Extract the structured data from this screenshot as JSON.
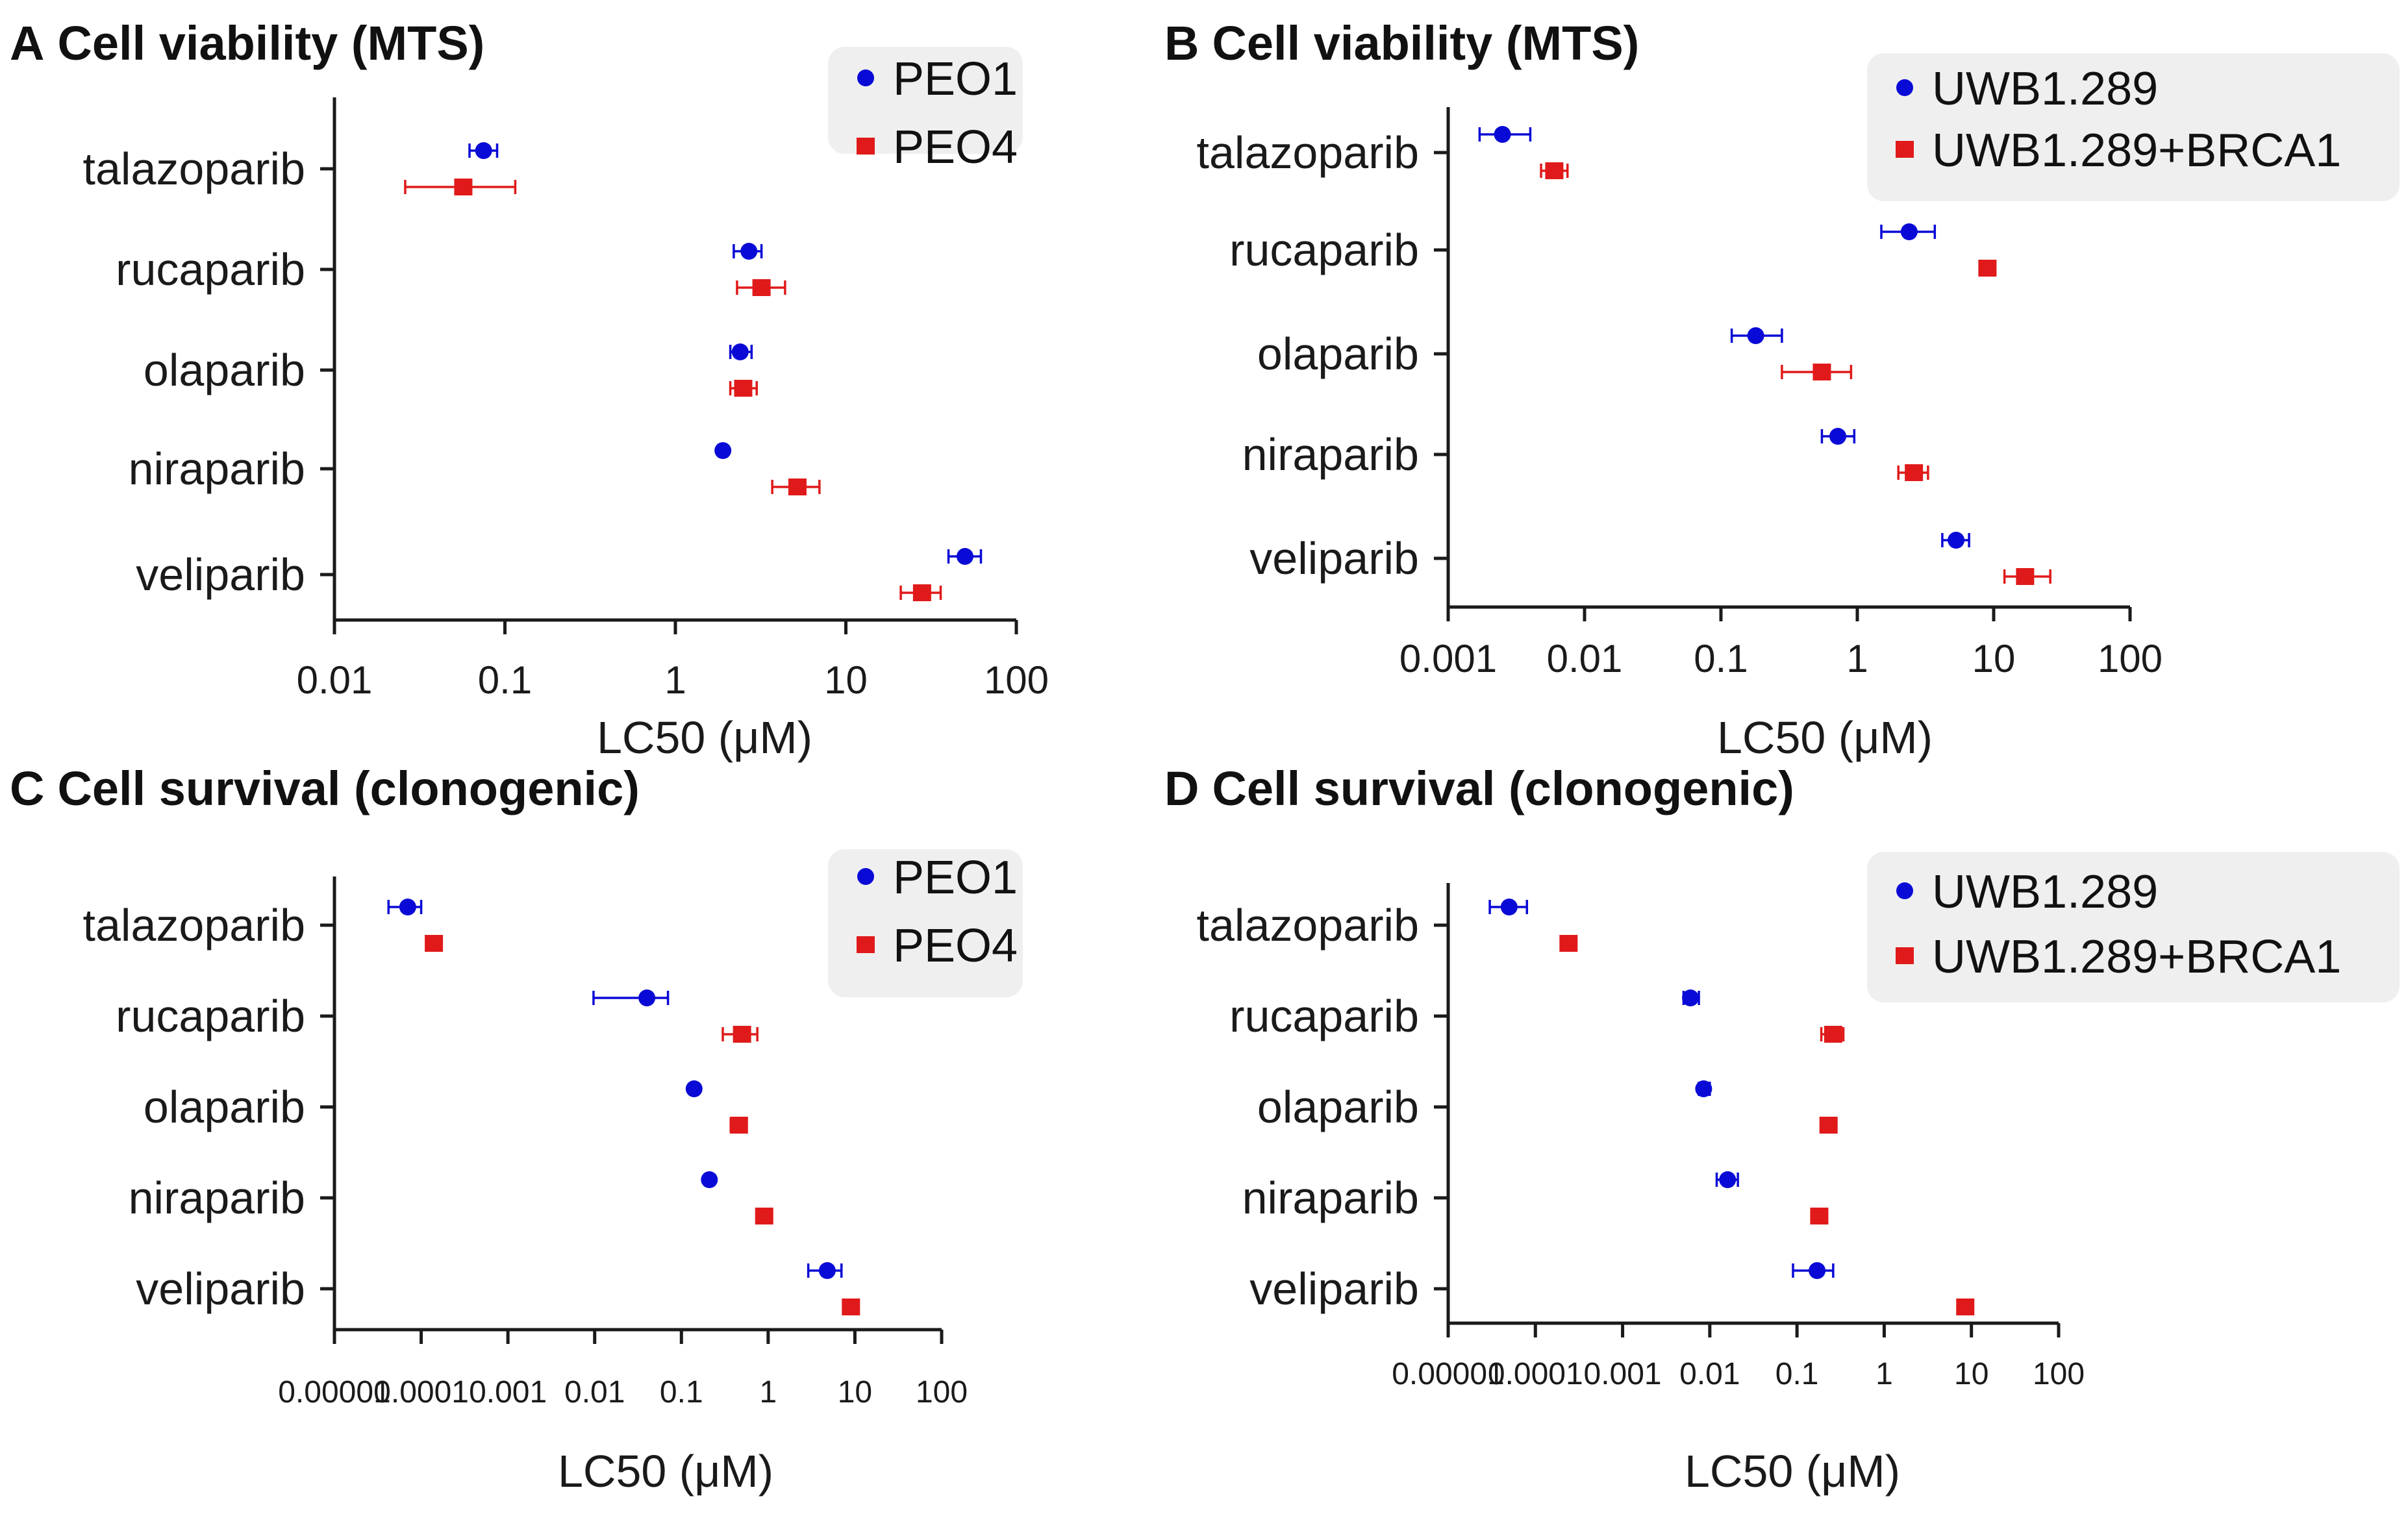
{
  "colors": {
    "peo1": "#0a0ad6",
    "peo4": "#e01a1a",
    "legend_bg": "#efefef",
    "text": "#1a1a1a"
  },
  "chart_data": [
    {
      "id": "A",
      "letter": "A",
      "title": "Cell viability (MTS)",
      "type": "scatter",
      "x_scale": "log",
      "xlim": [
        0.01,
        100
      ],
      "xticks": [
        "0.01",
        "0.1",
        "1",
        "10",
        "100"
      ],
      "xlabel": "LC50 (μM)",
      "categories": [
        "talazoparib",
        "rucaparib",
        "olaparib",
        "niraparib",
        "veliparib"
      ],
      "legend_position": "top-right",
      "series": [
        {
          "name": "PEO1",
          "marker": "circle",
          "color": "#0a0ad6",
          "values": [
            0.075,
            2.7,
            2.4,
            1.9,
            50
          ],
          "err_low": [
            0.062,
            2.2,
            2.1,
            1.8,
            40
          ],
          "err_high": [
            0.09,
            3.2,
            2.8,
            2.0,
            62
          ]
        },
        {
          "name": "PEO4",
          "marker": "square",
          "color": "#e01a1a",
          "values": [
            0.057,
            3.2,
            2.5,
            5.2,
            28
          ],
          "err_low": [
            0.026,
            2.3,
            2.1,
            3.7,
            21
          ],
          "err_high": [
            0.115,
            4.4,
            3.0,
            7.0,
            36
          ]
        }
      ]
    },
    {
      "id": "B",
      "letter": "B",
      "title": "Cell viability (MTS)",
      "type": "scatter",
      "x_scale": "log",
      "xlim": [
        0.001,
        100
      ],
      "xticks": [
        "0.001",
        "0.01",
        "0.1",
        "1",
        "10",
        "100"
      ],
      "xlabel": "LC50 (μM)",
      "categories": [
        "talazoparib",
        "rucaparib",
        "olaparib",
        "niraparib",
        "veliparib"
      ],
      "legend_position": "top-right",
      "series": [
        {
          "name": "UWB1.289",
          "marker": "circle",
          "color": "#0a0ad6",
          "values": [
            0.0025,
            2.4,
            0.18,
            0.72,
            5.3
          ],
          "err_low": [
            0.0017,
            1.5,
            0.12,
            0.55,
            4.2
          ],
          "err_high": [
            0.004,
            3.7,
            0.28,
            0.95,
            6.6
          ]
        },
        {
          "name": "UWB1.289+BRCA1",
          "marker": "square",
          "color": "#e01a1a",
          "values": [
            0.006,
            9.0,
            0.55,
            2.6,
            17
          ],
          "err_low": [
            0.0048,
            8.8,
            0.28,
            2.0,
            12
          ],
          "err_high": [
            0.0075,
            9.2,
            0.9,
            3.3,
            26
          ]
        }
      ]
    },
    {
      "id": "C",
      "letter": "C",
      "title": "Cell survival (clonogenic)",
      "type": "scatter",
      "x_scale": "log",
      "xlim": [
        1e-05,
        100
      ],
      "xticks": [
        "0.00001",
        "0.0001",
        "0.001",
        "0.01",
        "0.1",
        "1",
        "10",
        "100"
      ],
      "xlabel": "LC50 (μM)",
      "categories": [
        "talazoparib",
        "rucaparib",
        "olaparib",
        "niraparib",
        "veliparib"
      ],
      "legend_position": "top-right",
      "series": [
        {
          "name": "PEO1",
          "marker": "circle",
          "color": "#0a0ad6",
          "values": [
            7e-05,
            0.04,
            0.14,
            0.21,
            4.8
          ],
          "err_low": [
            4.2e-05,
            0.0097,
            0.13,
            0.19,
            2.9
          ],
          "err_high": [
            0.0001,
            0.07,
            0.15,
            0.23,
            7.0
          ]
        },
        {
          "name": "PEO4",
          "marker": "square",
          "color": "#e01a1a",
          "values": [
            0.00014,
            0.5,
            0.46,
            0.9,
            9.0
          ],
          "err_low": [
            0.00013,
            0.3,
            0.37,
            0.85,
            7.5
          ],
          "err_high": [
            0.00015,
            0.75,
            0.56,
            0.95,
            10.5
          ]
        }
      ]
    },
    {
      "id": "D",
      "letter": "D",
      "title": "Cell survival (clonogenic)",
      "type": "scatter",
      "x_scale": "log",
      "xlim": [
        1e-05,
        100
      ],
      "xticks": [
        "0.00001",
        "0.0001",
        "0.001",
        "0.01",
        "0.1",
        "1",
        "10",
        "100"
      ],
      "xlabel": "LC50 (μM)",
      "categories": [
        "talazoparib",
        "rucaparib",
        "olaparib",
        "niraparib",
        "veliparib"
      ],
      "legend_position": "top-right",
      "series": [
        {
          "name": "UWB1.289",
          "marker": "circle",
          "color": "#0a0ad6",
          "values": [
            5e-05,
            0.006,
            0.0085,
            0.016,
            0.17
          ],
          "err_low": [
            3e-05,
            0.005,
            0.0075,
            0.012,
            0.09
          ],
          "err_high": [
            8e-05,
            0.0075,
            0.01,
            0.021,
            0.26
          ]
        },
        {
          "name": "UWB1.289+BRCA1",
          "marker": "square",
          "color": "#e01a1a",
          "values": [
            0.00024,
            0.26,
            0.23,
            0.18,
            8.5
          ],
          "err_low": [
            0.0002,
            0.19,
            0.2,
            0.16,
            7.0
          ],
          "err_high": [
            0.00028,
            0.34,
            0.26,
            0.2,
            10
          ]
        }
      ]
    }
  ]
}
